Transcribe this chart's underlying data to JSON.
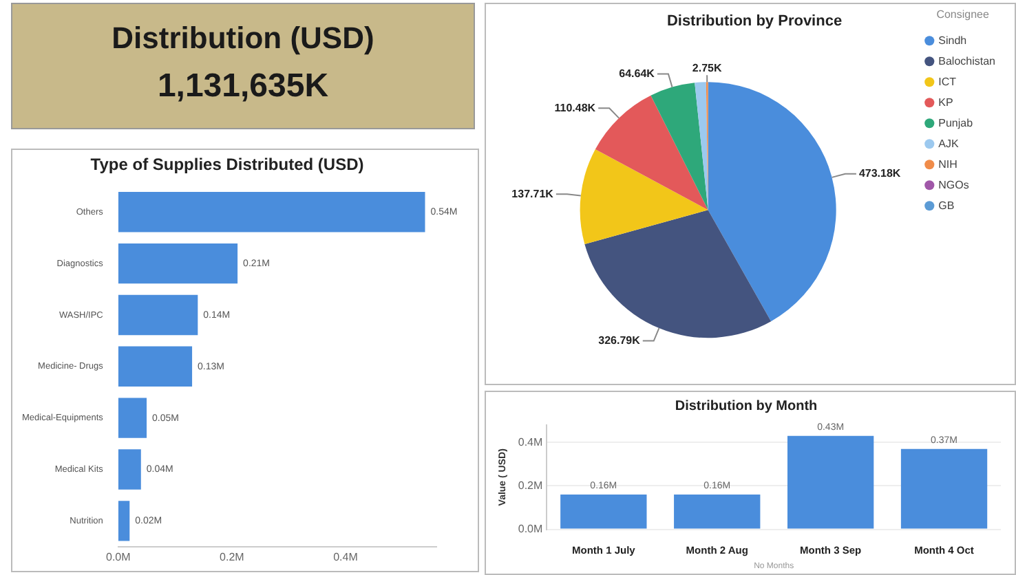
{
  "chart_data": [
    {
      "type": "other",
      "title": "Distribution (USD)",
      "annotations": [
        "1,131,635K"
      ]
    },
    {
      "type": "bar",
      "orientation": "horizontal",
      "title": "Type of Supplies Distributed (USD)",
      "categories": [
        "Others",
        "Diagnostics",
        "WASH/IPC",
        "Medicine- Drugs",
        "Medical-Equipments",
        "Medical Kits",
        "Nutrition"
      ],
      "values": [
        0.54,
        0.21,
        0.14,
        0.13,
        0.05,
        0.04,
        0.02
      ],
      "value_labels": [
        "0.54M",
        "0.21M",
        "0.14M",
        "0.13M",
        "0.05M",
        "0.04M",
        "0.02M"
      ],
      "color": "#4a8ddc",
      "xlim": [
        0,
        0.56
      ],
      "xticks": [
        {
          "value": 0,
          "label": "0.0M"
        },
        {
          "value": 0.2,
          "label": "0.2M"
        },
        {
          "value": 0.4,
          "label": "0.4M"
        }
      ],
      "grid": false
    },
    {
      "type": "pie",
      "title": "Distribution by Province",
      "legend_title": "Consignee",
      "legend": "right",
      "categories": [
        "Sindh",
        "Balochistan",
        "ICT",
        "KP",
        "Punjab",
        "AJK",
        "NIH",
        "NGOs",
        "GB"
      ],
      "values": [
        473.18,
        326.79,
        137.71,
        110.48,
        64.64,
        16.08,
        2.75,
        0,
        0
      ],
      "value_labels": [
        "473.18K",
        "326.79K",
        "137.71K",
        "110.48K",
        "64.64K",
        null,
        "2.75K",
        null,
        null
      ],
      "colors": [
        "#4a8ddc",
        "#44547f",
        "#f2c619",
        "#e3595a",
        "#2ea87a",
        "#9cc9ef",
        "#f08c4a",
        "#a057a8",
        "#5b9bd5"
      ]
    },
    {
      "type": "bar",
      "title": "Distribution by Month",
      "xlabel": "No Months",
      "ylabel": "Value ( USD)",
      "categories": [
        "Month 1 July",
        "Month 2 Aug",
        "Month 3 Sep",
        "Month 4 Oct"
      ],
      "values": [
        0.16,
        0.16,
        0.43,
        0.37
      ],
      "value_labels": [
        "0.16M",
        "0.16M",
        "0.43M",
        "0.37M"
      ],
      "color": "#4a8ddc",
      "ylim": [
        0,
        0.48
      ],
      "yticks": [
        {
          "value": 0,
          "label": "0.0M"
        },
        {
          "value": 0.2,
          "label": "0.2M"
        },
        {
          "value": 0.4,
          "label": "0.4M"
        }
      ],
      "grid": "y"
    }
  ]
}
